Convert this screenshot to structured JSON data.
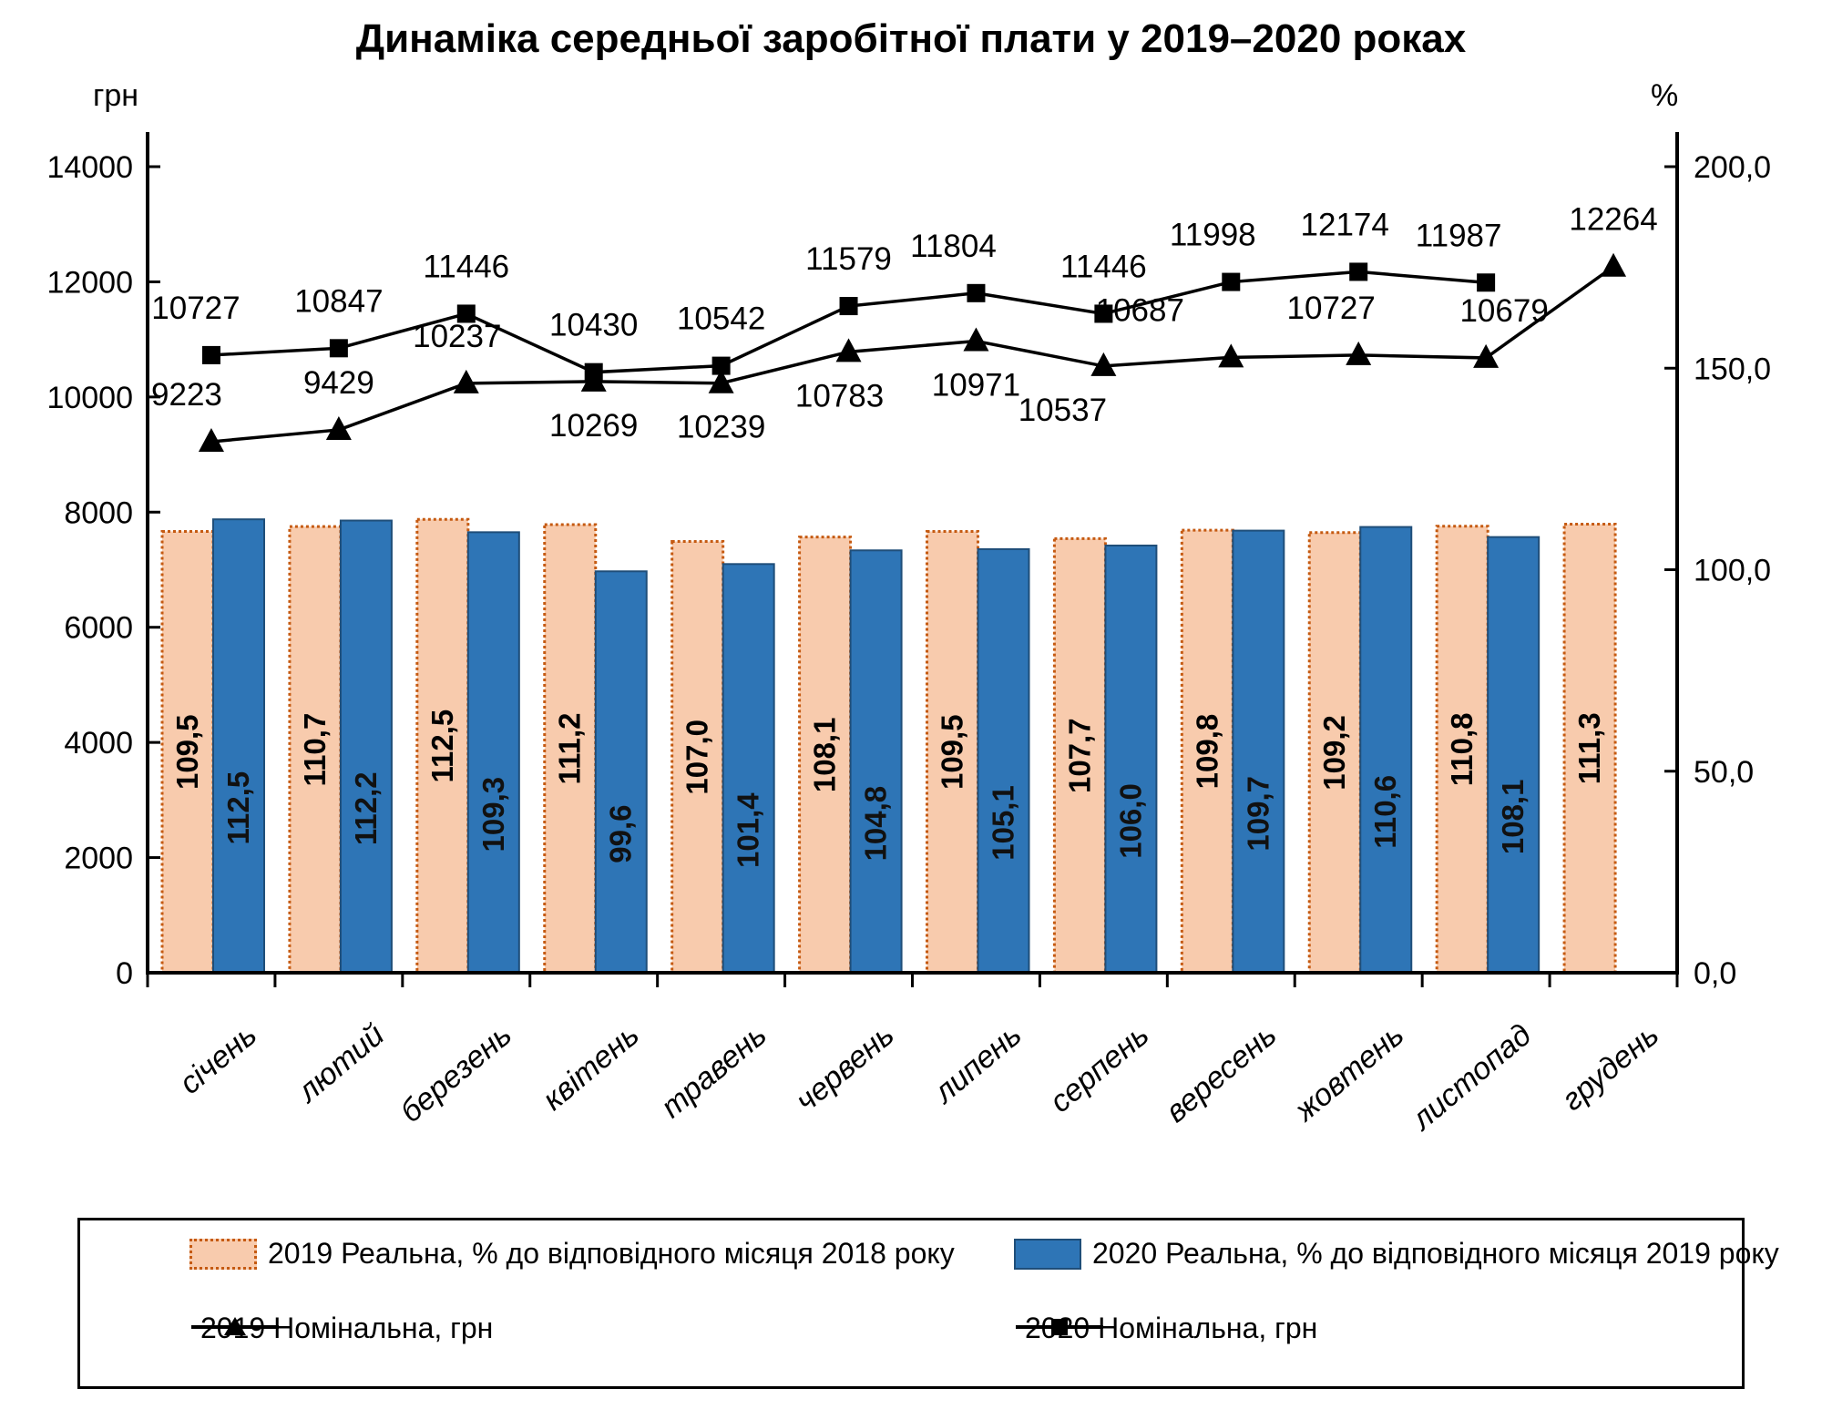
{
  "title": "Динаміка середньої заробітної плати у 2019–2020 роках",
  "left_axis": {
    "unit": "грн",
    "min": 0,
    "max": 14000,
    "tick_step": 2000,
    "tick_labels": [
      "0",
      "2000",
      "4000",
      "6000",
      "8000",
      "10000",
      "12000",
      "14000"
    ]
  },
  "right_axis": {
    "unit": "%",
    "min": 0,
    "max": 200,
    "tick_step": 50,
    "tick_labels": [
      "0,0",
      "50,0",
      "100,0",
      "150,0",
      "200,0"
    ]
  },
  "chart_data": {
    "type": "bar+line combo",
    "categories": [
      "січень",
      "лютий",
      "березень",
      "квітень",
      "травень",
      "червень",
      "липень",
      "серпень",
      "вересень",
      "жовтень",
      "листопад",
      "грудень"
    ],
    "series": [
      {
        "name": "2019 Реальна, % до відповідного місяця 2018 року",
        "type": "bar",
        "axis": "right",
        "values": [
          109.5,
          110.7,
          112.5,
          111.2,
          107.0,
          108.1,
          109.5,
          107.7,
          109.8,
          109.2,
          110.8,
          111.3
        ]
      },
      {
        "name": "2020 Реальна, % до відповідного місяця 2019 року",
        "type": "bar",
        "axis": "right",
        "values": [
          112.5,
          112.2,
          109.3,
          99.6,
          101.4,
          104.8,
          105.1,
          106.0,
          109.7,
          110.6,
          108.1,
          null
        ]
      },
      {
        "name": "2019 Номінальна, грн",
        "type": "line",
        "marker": "triangle",
        "axis": "left",
        "values": [
          9223,
          9429,
          10237,
          10269,
          10239,
          10783,
          10971,
          10537,
          10687,
          10727,
          10679,
          12264
        ],
        "label_below_indices": [
          3,
          4,
          5,
          6,
          7
        ]
      },
      {
        "name": "2020 Номінальна, грн",
        "type": "line",
        "marker": "square",
        "axis": "left",
        "values": [
          10727,
          10847,
          11446,
          10430,
          10542,
          11579,
          11804,
          11446,
          11998,
          12174,
          11987,
          null
        ],
        "label_below_indices": []
      }
    ],
    "ylim_left": [
      0,
      14000
    ],
    "ylim_right": [
      0,
      200
    ],
    "grid": false,
    "legend_position": "bottom"
  },
  "colors": {
    "bar_2019_fill": "#F8CBAD",
    "bar_2019_border": "#C55A11",
    "bar_2020_fill": "#2E75B6",
    "bar_2020_border": "#1F4E79",
    "line": "#000000",
    "text": "#000000"
  }
}
